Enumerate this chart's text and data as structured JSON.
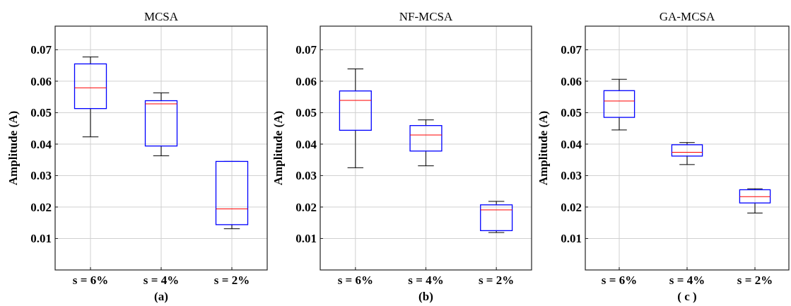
{
  "chart_data": [
    {
      "type": "box",
      "title": "MCSA",
      "xlabel": "(a)",
      "ylabel": "Amplitude (A)",
      "categories": [
        "s = 6%",
        "s = 4%",
        "s = 2%"
      ],
      "ylim": [
        0,
        0.0775
      ],
      "yticks": [
        0.01,
        0.02,
        0.03,
        0.04,
        0.05,
        0.06,
        0.07
      ],
      "grid": true,
      "series": [
        {
          "color": "#0000ff",
          "boxes": [
            {
              "low": 0.0423,
              "q1": 0.0513,
              "median": 0.0579,
              "q3": 0.0655,
              "high": 0.0677
            },
            {
              "low": 0.0363,
              "q1": 0.0394,
              "median": 0.0528,
              "q3": 0.0538,
              "high": 0.0563
            },
            {
              "low": 0.0131,
              "q1": 0.0144,
              "median": 0.0194,
              "q3": 0.0345,
              "high": 0.0345
            }
          ]
        }
      ]
    },
    {
      "type": "box",
      "title": "NF-MCSA",
      "xlabel": "(b)",
      "ylabel": "Amplitude (A)",
      "categories": [
        "s = 6%",
        "s = 4%",
        "s = 2%"
      ],
      "ylim": [
        0,
        0.0775
      ],
      "yticks": [
        0.01,
        0.02,
        0.03,
        0.04,
        0.05,
        0.06,
        0.07
      ],
      "grid": true,
      "series": [
        {
          "color": "#0000ff",
          "boxes": [
            {
              "low": 0.0325,
              "q1": 0.0444,
              "median": 0.0539,
              "q3": 0.0569,
              "high": 0.0639
            },
            {
              "low": 0.0331,
              "q1": 0.0378,
              "median": 0.0429,
              "q3": 0.0459,
              "high": 0.0477
            },
            {
              "low": 0.0119,
              "q1": 0.0125,
              "median": 0.0191,
              "q3": 0.0207,
              "high": 0.0218
            }
          ]
        }
      ]
    },
    {
      "type": "box",
      "title": "GA-MCSA",
      "xlabel": "( c )",
      "ylabel": "Amplitude (A)",
      "categories": [
        "s = 6%",
        "s = 4%",
        "s = 2%"
      ],
      "ylim": [
        0,
        0.0775
      ],
      "yticks": [
        0.01,
        0.02,
        0.03,
        0.04,
        0.05,
        0.06,
        0.07
      ],
      "grid": true,
      "series": [
        {
          "color": "#0000ff",
          "boxes": [
            {
              "low": 0.0445,
              "q1": 0.0485,
              "median": 0.0537,
              "q3": 0.057,
              "high": 0.0606
            },
            {
              "low": 0.0335,
              "q1": 0.0362,
              "median": 0.0374,
              "q3": 0.0398,
              "high": 0.0405
            },
            {
              "low": 0.0181,
              "q1": 0.0213,
              "median": 0.0233,
              "q3": 0.0255,
              "high": 0.0258
            }
          ]
        }
      ]
    }
  ]
}
